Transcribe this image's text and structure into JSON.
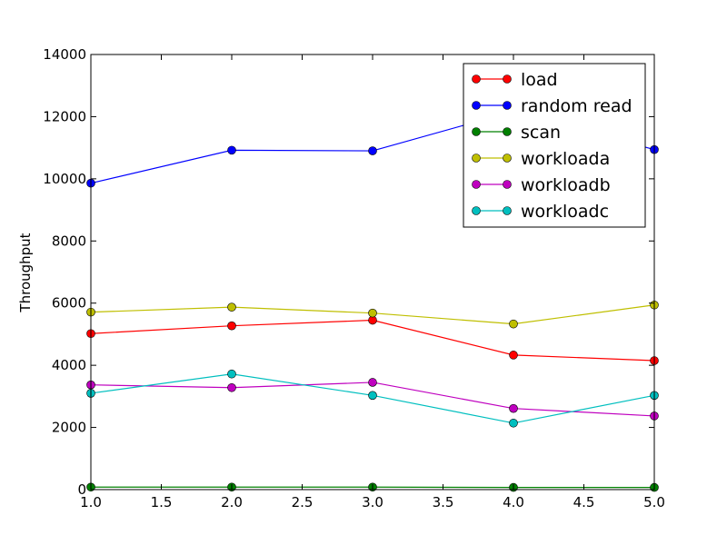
{
  "chart_data": {
    "type": "line",
    "title": "",
    "xlabel": "",
    "ylabel": "Throughput",
    "xlim": [
      1.0,
      5.0
    ],
    "ylim": [
      0,
      14000
    ],
    "x": [
      1.0,
      2.0,
      3.0,
      4.0,
      5.0
    ],
    "xticks": [
      "1.0",
      "1.5",
      "2.0",
      "2.5",
      "3.0",
      "3.5",
      "4.0",
      "4.5",
      "5.0"
    ],
    "yticks": [
      "0",
      "2000",
      "4000",
      "6000",
      "8000",
      "10000",
      "12000",
      "14000"
    ],
    "grid": false,
    "legend_position": "top-right",
    "series": [
      {
        "name": "load",
        "color": "#ff0000",
        "values": [
          5020,
          5270,
          5450,
          4330,
          4150
        ]
      },
      {
        "name": "random read",
        "color": "#0000ff",
        "values": [
          9860,
          10920,
          10900,
          12170,
          10940
        ]
      },
      {
        "name": "scan",
        "color": "#008000",
        "values": [
          80,
          80,
          80,
          70,
          70
        ]
      },
      {
        "name": "workloada",
        "color": "#bfbf00",
        "values": [
          5710,
          5870,
          5680,
          5330,
          5940
        ]
      },
      {
        "name": "workloadb",
        "color": "#bf00bf",
        "values": [
          3370,
          3280,
          3450,
          2610,
          2370
        ]
      },
      {
        "name": "workloadc",
        "color": "#00bfbf",
        "values": [
          3100,
          3720,
          3030,
          2140,
          3030
        ]
      }
    ]
  }
}
